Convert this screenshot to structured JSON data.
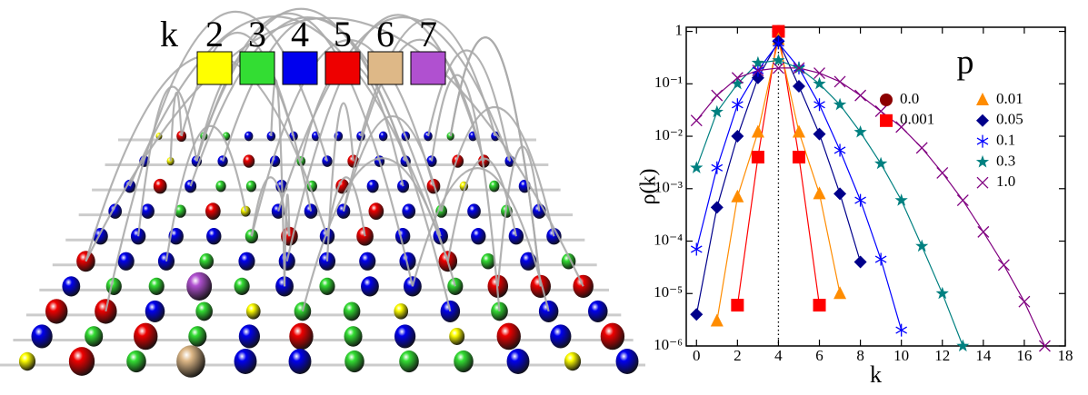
{
  "lattice_legend": {
    "title": "k",
    "items": [
      {
        "label": "2",
        "color": "#ffff00"
      },
      {
        "label": "3",
        "color": "#33dd33"
      },
      {
        "label": "4",
        "color": "#0000ee"
      },
      {
        "label": "5",
        "color": "#ee0000"
      },
      {
        "label": "6",
        "color": "#deb887"
      },
      {
        "label": "7",
        "color": "#b050d0"
      }
    ]
  },
  "chart_data": {
    "type": "line",
    "xlabel": "k",
    "ylabel": "ρ(k)",
    "legend_title": "p",
    "log_y": true,
    "xlim": [
      -0.5,
      18
    ],
    "ylim": [
      1e-06,
      1.2
    ],
    "xticks": [
      0,
      2,
      4,
      6,
      8,
      10,
      12,
      14,
      16,
      18
    ],
    "yticks": [
      1,
      {
        "value": 0.1,
        "label": "10⁻¹"
      },
      {
        "value": 0.01,
        "label": "10⁻²"
      },
      {
        "value": 0.001,
        "label": "10⁻³"
      },
      {
        "value": 0.0001,
        "label": "10⁻⁴"
      },
      {
        "value": 1e-05,
        "label": "10⁻⁵"
      },
      {
        "value": 1e-06,
        "label": "10⁻⁶"
      }
    ],
    "vline": 4,
    "series": [
      {
        "name": "0.0",
        "color": "#8b0000",
        "marker": "circle",
        "x": [
          4
        ],
        "values": [
          1
        ]
      },
      {
        "name": "0.001",
        "color": "#ff0000",
        "marker": "square",
        "x": [
          2,
          3,
          4,
          5,
          6
        ],
        "values": [
          6e-06,
          0.004,
          1,
          0.004,
          6e-06
        ]
      },
      {
        "name": "0.01",
        "color": "#ff8c00",
        "marker": "triangle",
        "x": [
          1,
          2,
          3,
          4,
          5,
          6,
          7
        ],
        "values": [
          3e-06,
          0.0007,
          0.012,
          0.7,
          0.012,
          0.0008,
          1e-05
        ]
      },
      {
        "name": "0.05",
        "color": "#00008b",
        "marker": "diamond",
        "x": [
          0,
          1,
          2,
          3,
          4,
          5,
          6,
          7,
          8
        ],
        "values": [
          4e-06,
          0.00044,
          0.01,
          0.13,
          0.65,
          0.09,
          0.011,
          0.0008,
          4e-05
        ]
      },
      {
        "name": "0.1",
        "color": "#0000ff",
        "marker": "asterisk",
        "x": [
          0,
          1,
          2,
          3,
          4,
          5,
          6,
          7,
          8,
          9,
          10
        ],
        "values": [
          7e-05,
          0.0025,
          0.04,
          0.18,
          0.6,
          0.2,
          0.04,
          0.0054,
          0.0006,
          4.5e-05,
          2e-06
        ]
      },
      {
        "name": "0.3",
        "color": "#008080",
        "marker": "star",
        "x": [
          0,
          1,
          2,
          3,
          4,
          5,
          6,
          7,
          8,
          9,
          10,
          11,
          12,
          13
        ],
        "values": [
          0.0025,
          0.029,
          0.1,
          0.25,
          0.28,
          0.2,
          0.1,
          0.04,
          0.012,
          0.003,
          0.0006,
          8e-05,
          1e-05,
          1e-06
        ]
      },
      {
        "name": "1.0",
        "color": "#800080",
        "marker": "cross",
        "x": [
          0,
          1,
          2,
          3,
          4,
          5,
          6,
          7,
          8,
          9,
          10,
          11,
          12,
          13,
          14,
          15,
          16,
          17
        ],
        "values": [
          0.02,
          0.06,
          0.13,
          0.18,
          0.2,
          0.2,
          0.16,
          0.11,
          0.06,
          0.03,
          0.015,
          0.006,
          0.002,
          0.0006,
          0.00015,
          3.5e-05,
          7e-06,
          1e-06
        ]
      }
    ]
  }
}
